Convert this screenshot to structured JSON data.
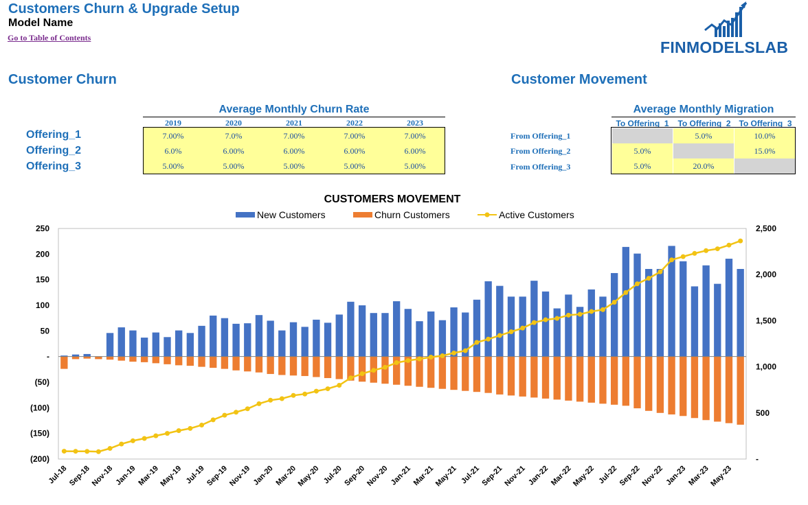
{
  "header": {
    "title": "Customers Churn & Upgrade Setup",
    "model_name": "Model Name",
    "toc_link": "Go to Table of Contents",
    "logo_text": "FINMODELSLAB"
  },
  "churn": {
    "section_title": "Customer Churn",
    "table_title": "Average Monthly Churn Rate",
    "years": [
      "2019",
      "2020",
      "2021",
      "2022",
      "2023"
    ],
    "rows": [
      {
        "label": "Offering_1",
        "values": [
          "7.00%",
          "7.0%",
          "7.00%",
          "7.00%",
          "7.00%"
        ]
      },
      {
        "label": "Offering_2",
        "values": [
          "6.0%",
          "6.00%",
          "6.00%",
          "6.00%",
          "6.00%"
        ]
      },
      {
        "label": "Offering_3",
        "values": [
          "5.00%",
          "5.00%",
          "5.00%",
          "5.00%",
          "5.00%"
        ]
      }
    ]
  },
  "movement": {
    "section_title": "Customer Movement",
    "table_title": "Average Monthly Migration",
    "columns": [
      "To Offering_1",
      "To Offering_2",
      "To Offering_3"
    ],
    "rows": [
      {
        "label": "From Offering_1",
        "values": [
          "",
          "5.0%",
          "10.0%"
        ]
      },
      {
        "label": "From Offering_2",
        "values": [
          "5.0%",
          "",
          "15.0%"
        ]
      },
      {
        "label": "From Offering_3",
        "values": [
          "5.0%",
          "20.0%",
          ""
        ]
      }
    ]
  },
  "colors": {
    "title_blue": "#1e6fb8",
    "new_customers": "#4472c4",
    "churn_customers": "#ed7d31",
    "active_customers": "#f2c314",
    "input_yellow": "#ffff99",
    "disabled_grey": "#d4d4d4"
  },
  "chart_data": {
    "type": "bar",
    "title": "CUSTOMERS MOVEMENT",
    "legend_position": "top",
    "categories": [
      "Jul-18",
      "Aug-18",
      "Sep-18",
      "Oct-18",
      "Nov-18",
      "Dec-18",
      "Jan-19",
      "Feb-19",
      "Mar-19",
      "Apr-19",
      "May-19",
      "Jun-19",
      "Jul-19",
      "Aug-19",
      "Sep-19",
      "Oct-19",
      "Nov-19",
      "Dec-19",
      "Jan-20",
      "Feb-20",
      "Mar-20",
      "Apr-20",
      "May-20",
      "Jun-20",
      "Jul-20",
      "Aug-20",
      "Sep-20",
      "Oct-20",
      "Nov-20",
      "Dec-20",
      "Jan-21",
      "Feb-21",
      "Mar-21",
      "Apr-21",
      "May-21",
      "Jun-21",
      "Jul-21",
      "Aug-21",
      "Sep-21",
      "Oct-21",
      "Nov-21",
      "Dec-21",
      "Jan-22",
      "Feb-22",
      "Mar-22",
      "Apr-22",
      "May-22",
      "Jun-22",
      "Jul-22",
      "Aug-22",
      "Sep-22",
      "Oct-22",
      "Nov-22",
      "Dec-22",
      "Jan-23",
      "Feb-23",
      "Mar-23",
      "Apr-23",
      "May-23",
      "Jun-23"
    ],
    "tick_labels": [
      "Jul-18",
      "Sep-18",
      "Nov-18",
      "Jan-19",
      "Mar-19",
      "May-19",
      "Jul-19",
      "Sep-19",
      "Nov-19",
      "Jan-20",
      "Mar-20",
      "May-20",
      "Jul-20",
      "Sep-20",
      "Nov-20",
      "Jan-21",
      "Mar-21",
      "May-21",
      "Jul-21",
      "Sep-21",
      "Nov-21",
      "Jan-22",
      "Mar-22",
      "May-22",
      "Jul-22",
      "Sep-22",
      "Nov-22",
      "Jan-23",
      "Mar-23",
      "May-23"
    ],
    "left_axis": {
      "range": [
        -200,
        250
      ],
      "ticks": [
        250,
        200,
        150,
        100,
        50,
        0,
        -50,
        -100,
        -150,
        -200
      ],
      "tick_labels": [
        "250",
        "200",
        "150",
        "100",
        "50",
        "-",
        "(50)",
        "(100)",
        "(150)",
        "(200)"
      ]
    },
    "right_axis": {
      "range": [
        0,
        2500
      ],
      "ticks": [
        2500,
        2000,
        1500,
        1000,
        500,
        0
      ],
      "tick_labels": [
        "2,500",
        "2,000",
        "1,500",
        "1,000",
        "500",
        "-"
      ]
    },
    "series": [
      {
        "name": "New Customers",
        "axis": "left",
        "type": "bar",
        "values": [
          2,
          4,
          5,
          0,
          46,
          57,
          51,
          37,
          47,
          38,
          51,
          46,
          60,
          80,
          75,
          64,
          65,
          81,
          70,
          51,
          67,
          58,
          72,
          66,
          82,
          107,
          100,
          85,
          85,
          108,
          93,
          69,
          88,
          71,
          96,
          86,
          111,
          147,
          138,
          117,
          117,
          148,
          127,
          94,
          121,
          97,
          131,
          117,
          163,
          214,
          201,
          171,
          171,
          216,
          186,
          137,
          178,
          142,
          191,
          171
        ]
      },
      {
        "name": "Churn Customers",
        "axis": "left",
        "type": "bar",
        "values": [
          -24,
          -5,
          -4,
          -5,
          -6,
          -8,
          -10,
          -11,
          -13,
          -15,
          -17,
          -18,
          -20,
          -22,
          -24,
          -27,
          -29,
          -31,
          -34,
          -36,
          -37,
          -38,
          -40,
          -42,
          -44,
          -47,
          -49,
          -51,
          -53,
          -55,
          -57,
          -59,
          -61,
          -63,
          -65,
          -67,
          -69,
          -71,
          -74,
          -76,
          -78,
          -80,
          -82,
          -84,
          -86,
          -88,
          -90,
          -92,
          -94,
          -96,
          -101,
          -106,
          -110,
          -113,
          -116,
          -120,
          -124,
          -127,
          -130,
          -133
        ]
      },
      {
        "name": "Active Customers",
        "axis": "right",
        "type": "line",
        "values": [
          85,
          84,
          83,
          80,
          115,
          163,
          198,
          223,
          252,
          278,
          308,
          332,
          368,
          425,
          475,
          508,
          545,
          600,
          638,
          655,
          690,
          705,
          736,
          762,
          800,
          880,
          925,
          962,
          995,
          1045,
          1068,
          1085,
          1105,
          1120,
          1150,
          1175,
          1265,
          1300,
          1340,
          1380,
          1420,
          1480,
          1510,
          1525,
          1560,
          1570,
          1600,
          1620,
          1700,
          1805,
          1900,
          1960,
          2030,
          2160,
          2195,
          2230,
          2260,
          2280,
          2320,
          2365
        ]
      }
    ]
  }
}
